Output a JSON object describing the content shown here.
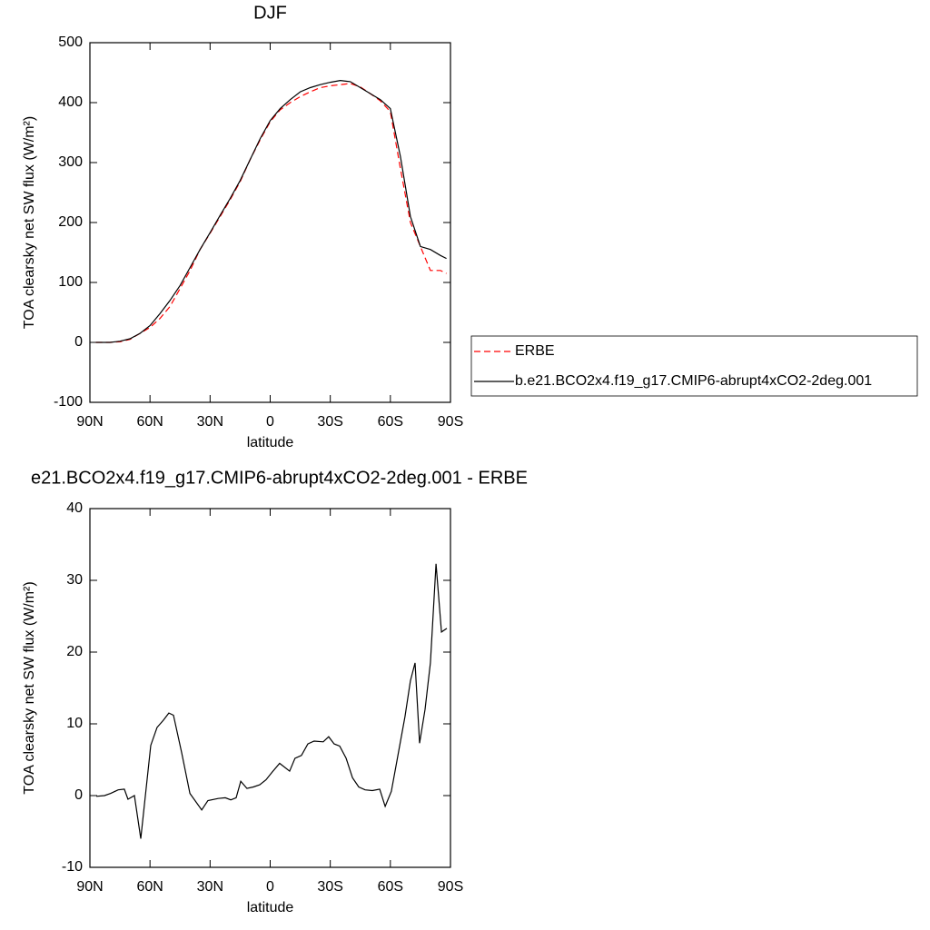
{
  "chart_data": [
    {
      "type": "line",
      "title": "DJF",
      "xlabel": "latitude",
      "ylabel": "TOA clearsky net SW flux (W/m²)",
      "x": [
        87,
        80,
        75,
        70,
        65,
        60,
        55,
        50,
        45,
        40,
        35,
        30,
        25,
        20,
        15,
        10,
        5,
        0,
        -5,
        -10,
        -15,
        -20,
        -25,
        -30,
        -35,
        -40,
        -45,
        -50,
        -55,
        -60,
        -65,
        -70,
        -75,
        -80,
        -85,
        -88
      ],
      "series": [
        {
          "name": "ERBE",
          "color": "#ff0000",
          "dashed": true,
          "values": [
            0,
            0,
            1,
            5,
            15,
            25,
            40,
            60,
            90,
            120,
            155,
            182,
            210,
            238,
            268,
            305,
            338,
            368,
            388,
            400,
            410,
            418,
            425,
            428,
            430,
            432,
            426,
            415,
            403,
            385,
            290,
            200,
            160,
            120,
            120,
            115
          ]
        },
        {
          "name": "b.e21.BCO2x4.f19_g17.CMIP6-abrupt4xCO2-2deg.001",
          "color": "#000000",
          "dashed": false,
          "values": [
            0,
            0,
            2,
            6,
            15,
            28,
            48,
            70,
            95,
            125,
            155,
            183,
            212,
            240,
            270,
            305,
            340,
            370,
            390,
            405,
            418,
            425,
            430,
            434,
            437,
            435,
            425,
            415,
            405,
            390,
            310,
            210,
            160,
            155,
            145,
            140
          ]
        }
      ],
      "xlim": [
        90,
        -90
      ],
      "ylim": [
        -100,
        500
      ],
      "xticks": [
        {
          "value": 90,
          "label": "90N"
        },
        {
          "value": 60,
          "label": "60N"
        },
        {
          "value": 30,
          "label": "30N"
        },
        0,
        {
          "value": -30,
          "label": "30S"
        },
        {
          "value": -60,
          "label": "60S"
        },
        {
          "value": -90,
          "label": "90S"
        }
      ],
      "yticks": [
        -100,
        0,
        100,
        200,
        300,
        400,
        500
      ],
      "legend": "right"
    },
    {
      "type": "line",
      "title": "e21.BCO2x4.f19_g17.CMIP6-abrupt4xCO2-2deg.001 - ERBE",
      "xlabel": "latitude",
      "ylabel": "TOA clearsky net SW flux (W/m²)",
      "x": [
        86.8,
        82.7,
        79.6,
        75.9,
        72.8,
        71,
        67.8,
        64.6,
        59.6,
        56.5,
        53.3,
        50.6,
        48.3,
        44.2,
        40.1,
        34.2,
        31.1,
        26,
        22.4,
        19.7,
        17,
        14.7,
        11.6,
        8.4,
        5.2,
        2.1,
        -1.1,
        -4.7,
        -9.7,
        -12.4,
        -15.6,
        -18.8,
        -21.9,
        -26.5,
        -29.2,
        -31.9,
        -34.7,
        -37.9,
        -41.1,
        -44.2,
        -47.4,
        -51,
        -54.7,
        -57.4,
        -60.5,
        -63.7,
        -67.3,
        -70,
        -72.3,
        -74.6,
        -77.3,
        -80,
        -82.8,
        -85.5,
        -88.2
      ],
      "series": [
        {
          "color": "#000000",
          "dashed": false,
          "values": [
            -0.1,
            0,
            0.3,
            0.8,
            0.9,
            -0.5,
            0,
            -6,
            7,
            9.5,
            10.5,
            11.5,
            11.2,
            6,
            0.3,
            -2,
            -0.7,
            -0.4,
            -0.3,
            -0.6,
            -0.3,
            2,
            1,
            1.2,
            1.5,
            2.2,
            3.3,
            4.5,
            3.4,
            5.2,
            5.6,
            7.2,
            7.6,
            7.5,
            8.2,
            7.2,
            6.9,
            5.2,
            2.5,
            1.2,
            0.8,
            0.7,
            0.9,
            -1.5,
            0.6,
            5.5,
            11,
            16,
            18.5,
            7.3,
            12,
            18.5,
            32.3,
            22.8,
            23.3
          ]
        }
      ],
      "xlim": [
        90,
        -90
      ],
      "ylim": [
        -10,
        40
      ],
      "xticks": [
        {
          "value": 90,
          "label": "90N"
        },
        {
          "value": 60,
          "label": "60N"
        },
        {
          "value": 30,
          "label": "30N"
        },
        0,
        {
          "value": -30,
          "label": "30S"
        },
        {
          "value": -60,
          "label": "60S"
        },
        {
          "value": -90,
          "label": "90S"
        }
      ],
      "yticks": [
        -10,
        0,
        10,
        20,
        30,
        40
      ]
    }
  ]
}
